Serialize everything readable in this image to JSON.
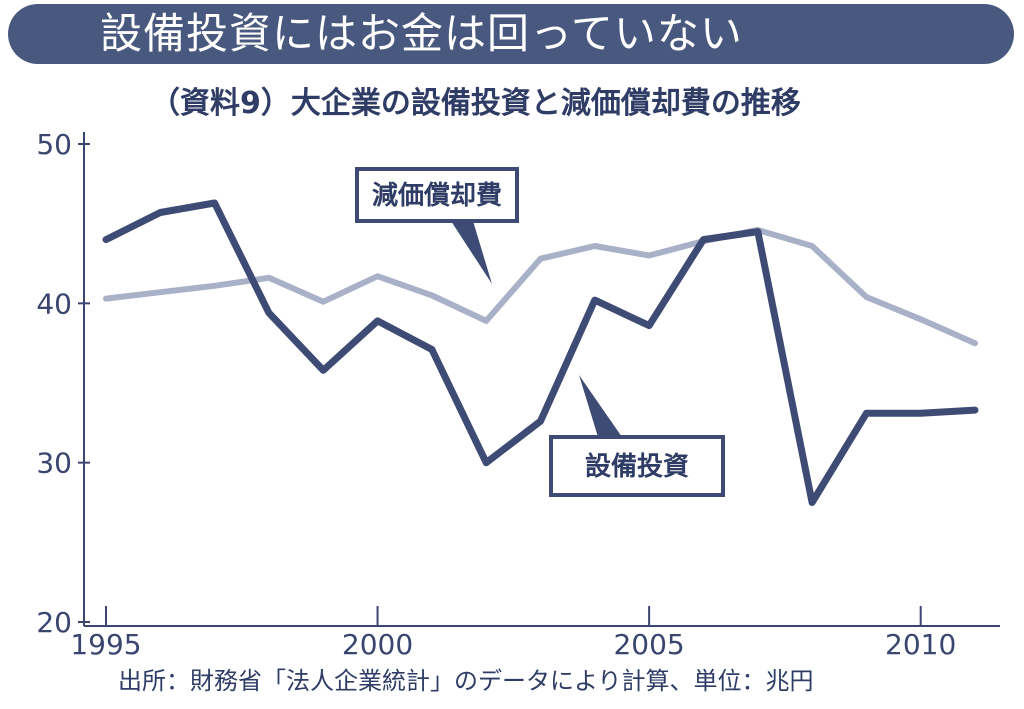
{
  "header": {
    "title": "設備投資にはお金は回っていない",
    "subtitle": "（資料9）大企業の設備投資と減価償却費の推移"
  },
  "footer": {
    "source": "出所：財務省「法人企業統計」のデータにより計算、単位：兆円"
  },
  "colors": {
    "banner": "#48587e",
    "capex": "#3e4c75",
    "depreciation": "#a9b1c8",
    "text": "#2f3d66"
  },
  "chart_data": {
    "type": "line",
    "title": "",
    "xlabel": "",
    "ylabel": "",
    "xlim": [
      1995,
      2011
    ],
    "ylim": [
      20,
      50
    ],
    "x_ticks": [
      1995,
      2000,
      2005,
      2010
    ],
    "y_ticks": [
      20,
      30,
      40,
      50
    ],
    "grid": false,
    "x": [
      1995,
      1996,
      1997,
      1998,
      1999,
      2000,
      2001,
      2002,
      2003,
      2004,
      2005,
      2006,
      2007,
      2008,
      2009,
      2010,
      2011
    ],
    "series": [
      {
        "name": "設備投資",
        "values": [
          44.0,
          45.7,
          46.3,
          39.4,
          35.8,
          38.9,
          37.1,
          30.0,
          32.6,
          40.2,
          38.6,
          44.0,
          44.5,
          27.5,
          33.1,
          33.1,
          33.3
        ]
      },
      {
        "name": "減価償却費",
        "values": [
          40.3,
          40.7,
          41.1,
          41.6,
          40.1,
          41.7,
          40.5,
          38.9,
          42.8,
          43.6,
          43.0,
          43.9,
          44.6,
          43.6,
          40.4,
          39.0,
          37.5
        ]
      }
    ]
  }
}
